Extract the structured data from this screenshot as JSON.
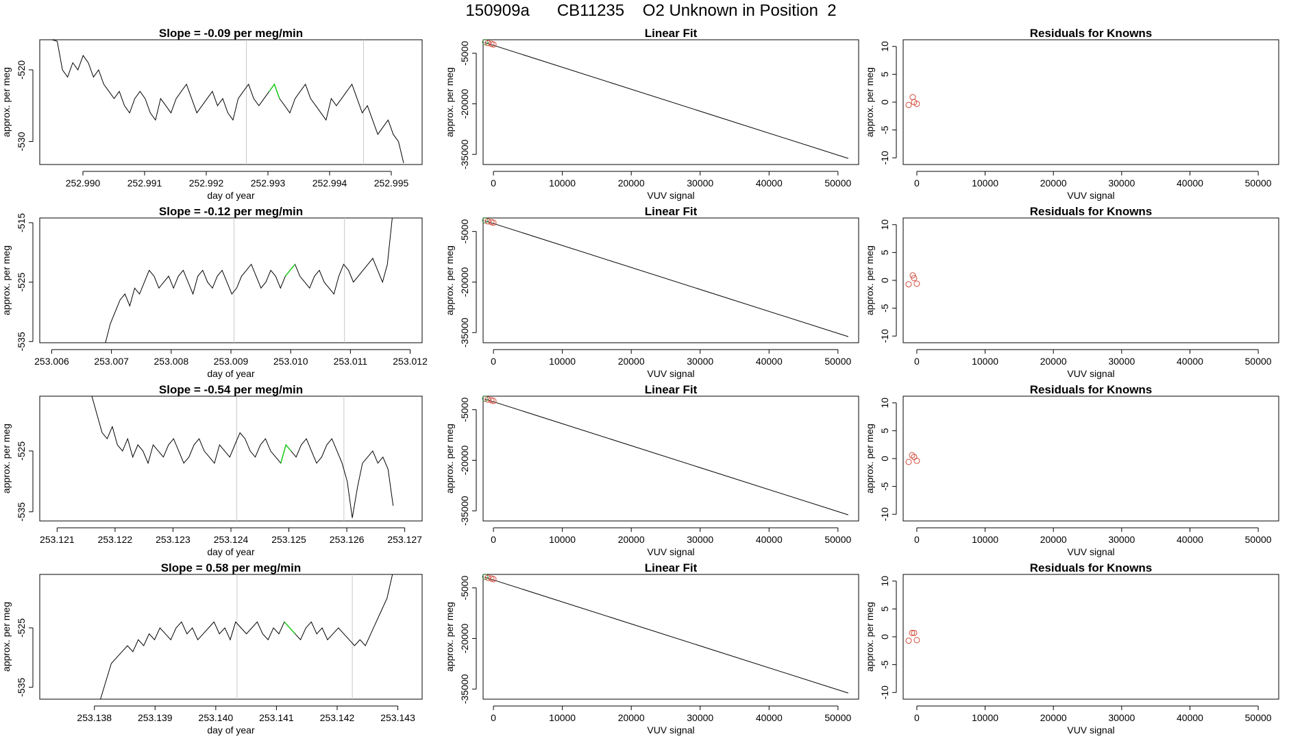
{
  "page_title": "150909a      CB11235    O2 Unknown in Position  2",
  "rows": [
    {
      "time_title": "Slope =  -0.09  per meg/min",
      "time_xticks": [
        "252.990",
        "252.991",
        "252.992",
        "252.993",
        "252.994",
        "252.995"
      ],
      "time_xvals": [
        252.99,
        252.991,
        252.992,
        252.993,
        252.994,
        252.995
      ],
      "time_yticks": [
        "-520",
        "-530"
      ],
      "time_yvals": [
        -520,
        -530
      ],
      "time_xlim": [
        252.9893,
        252.9955
      ],
      "time_ylim": [
        -533.2,
        -515.8
      ],
      "vlines": [
        252.99265,
        252.99455
      ]
    },
    {
      "time_title": "Slope =  -0.12  per meg/min",
      "time_xticks": [
        "253.006",
        "253.007",
        "253.008",
        "253.009",
        "253.010",
        "253.011",
        "253.012"
      ],
      "time_xvals": [
        253.006,
        253.007,
        253.008,
        253.009,
        253.01,
        253.011,
        253.012
      ],
      "time_yticks": [
        "-515",
        "-525",
        "-535"
      ],
      "time_yvals": [
        -515,
        -525,
        -535
      ],
      "time_xlim": [
        253.0058,
        253.0122
      ],
      "time_ylim": [
        -535.2,
        -514.2
      ],
      "vlines": [
        253.00905,
        253.0109
      ]
    },
    {
      "time_title": "Slope =  -0.54  per meg/min",
      "time_xticks": [
        "253.121",
        "253.122",
        "253.123",
        "253.124",
        "253.125",
        "253.126",
        "253.127"
      ],
      "time_xvals": [
        253.121,
        253.122,
        253.123,
        253.124,
        253.125,
        253.126,
        253.127
      ],
      "time_yticks": [
        "-525",
        "-535"
      ],
      "time_yvals": [
        -525,
        -535
      ],
      "time_xlim": [
        253.1207,
        253.1273
      ],
      "time_ylim": [
        -536.5,
        -516.0
      ],
      "vlines": [
        253.1241,
        253.12595
      ]
    },
    {
      "time_title": "Slope =  0.58  per meg/min",
      "time_xticks": [
        "253.138",
        "253.139",
        "253.140",
        "253.141",
        "253.142",
        "253.143"
      ],
      "time_xvals": [
        253.138,
        253.139,
        253.14,
        253.141,
        253.142,
        253.143
      ],
      "time_yticks": [
        "-525",
        "-535"
      ],
      "time_yvals": [
        -525,
        -535
      ],
      "time_xlim": [
        253.1371,
        253.1434
      ],
      "time_ylim": [
        -537.0,
        -516.0
      ],
      "vlines": [
        253.14035,
        253.14225
      ]
    }
  ],
  "shared": {
    "time_xlabel": "day of year",
    "ylabel": "approx. per meg",
    "fit_title": "Linear Fit",
    "fit_xlabel": "VUV signal",
    "fit_xticks": [
      "0",
      "10000",
      "20000",
      "30000",
      "40000",
      "50000"
    ],
    "fit_xvals": [
      0,
      10000,
      20000,
      30000,
      40000,
      50000
    ],
    "fit_yticks": [
      "-5000",
      "-20000",
      "-35000"
    ],
    "fit_yvals": [
      -5000,
      -20000,
      -35000
    ],
    "fit_xlim": [
      -1500,
      53000
    ],
    "fit_ylim": [
      -38000,
      -1000
    ],
    "resid_title": "Residuals for Knowns",
    "resid_xlabel": "VUV signal",
    "resid_xticks": [
      "0",
      "10000",
      "20000",
      "30000",
      "40000",
      "50000"
    ],
    "resid_xvals": [
      0,
      10000,
      20000,
      30000,
      40000,
      50000
    ],
    "resid_yticks": [
      "10",
      "5",
      "0",
      "-5",
      "-10"
    ],
    "resid_yvals": [
      10,
      5,
      0,
      -5,
      -10
    ],
    "resid_xlim": [
      -2000,
      53000
    ],
    "resid_ylim": [
      -11.2,
      11.2
    ]
  },
  "colors": {
    "line": "#000000",
    "highlight": "#22cc22",
    "known_points": "#d04a3a",
    "unknown_point": "#3f9a3f",
    "vline": "#c8c8c8"
  },
  "chart_data": [
    {
      "type": "line",
      "title": "Slope =  -0.09  per meg/min",
      "xlabel": "day of year",
      "ylabel": "approx. per meg",
      "xlim": [
        252.9893,
        252.9955
      ],
      "ylim": [
        -533.2,
        -515.8
      ],
      "series": [
        {
          "x_start": 252.9895,
          "x_end": 252.9952,
          "approx_values": [
            -512,
            -516,
            -520,
            -521,
            -519,
            -520,
            -518,
            -519,
            -521,
            -520,
            -522,
            -523,
            -524,
            -523,
            -525,
            -526,
            -524,
            -523,
            -524,
            -526,
            -527,
            -524,
            -525,
            -526,
            -524,
            -523,
            -522,
            -524,
            -526,
            -525,
            -524,
            -523,
            -525,
            -524,
            -526,
            -527,
            -524,
            -523,
            -522,
            -524,
            -525,
            -524,
            -523,
            -522,
            -524,
            -525,
            -526,
            -524,
            -523,
            -522,
            -524,
            -525,
            -526,
            -527,
            -524,
            -525,
            -524,
            -523,
            -522,
            -524,
            -526,
            -525,
            -527,
            -529,
            -528,
            -527,
            -529,
            -530,
            -533
          ]
        }
      ]
    },
    {
      "type": "line",
      "title": "Slope =  -0.12  per meg/min",
      "xlabel": "day of year",
      "ylabel": "approx. per meg",
      "xlim": [
        253.0058,
        253.0122
      ],
      "ylim": [
        -535.2,
        -514.2
      ],
      "series": [
        {
          "x_start": 253.0069,
          "x_end": 253.0117,
          "approx_values": [
            -536,
            -532,
            -530,
            -528,
            -527,
            -529,
            -526,
            -527,
            -525,
            -523,
            -524,
            -526,
            -525,
            -524,
            -526,
            -524,
            -523,
            -525,
            -527,
            -524,
            -523,
            -525,
            -526,
            -524,
            -523,
            -525,
            -527,
            -526,
            -524,
            -523,
            -522,
            -524,
            -526,
            -525,
            -523,
            -524,
            -526,
            -524,
            -523,
            -522,
            -524,
            -525,
            -526,
            -524,
            -523,
            -525,
            -526,
            -527,
            -524,
            -522,
            -523,
            -525,
            -524,
            -523,
            -522,
            -521,
            -523,
            -525,
            -522,
            -514
          ]
        }
      ]
    },
    {
      "type": "line",
      "title": "Slope =  -0.54  per meg/min",
      "xlabel": "day of year",
      "ylabel": "approx. per meg",
      "xlim": [
        253.1207,
        253.1273
      ],
      "ylim": [
        -536.5,
        -516.0
      ],
      "series": [
        {
          "x_start": 253.1216,
          "x_end": 253.1268,
          "approx_values": [
            -515,
            -519,
            -522,
            -523,
            -521,
            -524,
            -525,
            -523,
            -526,
            -524,
            -525,
            -527,
            -524,
            -525,
            -526,
            -524,
            -523,
            -525,
            -527,
            -526,
            -524,
            -523,
            -525,
            -526,
            -527,
            -524,
            -525,
            -526,
            -524,
            -522,
            -523,
            -525,
            -526,
            -524,
            -523,
            -525,
            -526,
            -527,
            -524,
            -525,
            -526,
            -524,
            -523,
            -525,
            -527,
            -526,
            -524,
            -523,
            -525,
            -527,
            -530,
            -536,
            -531,
            -527,
            -526,
            -525,
            -527,
            -526,
            -528,
            -534
          ]
        }
      ]
    },
    {
      "type": "line",
      "title": "Slope =  0.58  per meg/min",
      "xlabel": "day of year",
      "ylabel": "approx. per meg",
      "xlim": [
        253.1371,
        253.1434
      ],
      "ylim": [
        -537.0,
        -516.0
      ],
      "series": [
        {
          "x_start": 253.1381,
          "x_end": 253.143,
          "approx_values": [
            -537,
            -534,
            -531,
            -530,
            -529,
            -528,
            -529,
            -527,
            -528,
            -526,
            -527,
            -525,
            -526,
            -527,
            -525,
            -524,
            -526,
            -525,
            -527,
            -526,
            -525,
            -524,
            -526,
            -525,
            -527,
            -524,
            -525,
            -526,
            -525,
            -524,
            -526,
            -527,
            -525,
            -526,
            -524,
            -525,
            -526,
            -527,
            -525,
            -524,
            -526,
            -525,
            -527,
            -526,
            -525,
            -526,
            -527,
            -528,
            -527,
            -528,
            -526,
            -524,
            -522,
            -520,
            -516,
            -512
          ]
        }
      ]
    },
    {
      "type": "scatter",
      "title": "Linear Fit",
      "xlabel": "VUV signal",
      "ylabel": "approx. per meg",
      "xlim": [
        -1500,
        53000
      ],
      "ylim": [
        -38000,
        -1000
      ],
      "fit_line": {
        "x": [
          -1300,
          51500
        ],
        "y": [
          -1800,
          -36200
        ]
      },
      "points": [
        {
          "x": -1200,
          "y": -1700
        },
        {
          "x": -800,
          "y": -2000
        },
        {
          "x": -300,
          "y": -2200
        },
        {
          "x": 0,
          "y": -2400
        }
      ]
    },
    {
      "type": "scatter",
      "title": "Residuals for Knowns",
      "xlabel": "VUV signal",
      "ylabel": "approx. per meg",
      "xlim": [
        -2000,
        53000
      ],
      "ylim": [
        -11.2,
        11.2
      ],
      "points_by_row": [
        [
          {
            "x": -1200,
            "y": -0.5
          },
          {
            "x": -600,
            "y": 0.9
          },
          {
            "x": -400,
            "y": 0.0
          },
          {
            "x": 0,
            "y": -0.3
          }
        ],
        [
          {
            "x": -1200,
            "y": -0.7
          },
          {
            "x": -600,
            "y": 0.9
          },
          {
            "x": -400,
            "y": 0.4
          },
          {
            "x": 0,
            "y": -0.6
          }
        ],
        [
          {
            "x": -1200,
            "y": -0.6
          },
          {
            "x": -700,
            "y": 0.6
          },
          {
            "x": -400,
            "y": 0.3
          },
          {
            "x": 0,
            "y": -0.4
          }
        ],
        [
          {
            "x": -1200,
            "y": -0.7
          },
          {
            "x": -700,
            "y": 0.7
          },
          {
            "x": -400,
            "y": 0.7
          },
          {
            "x": 0,
            "y": -0.6
          }
        ]
      ]
    }
  ]
}
